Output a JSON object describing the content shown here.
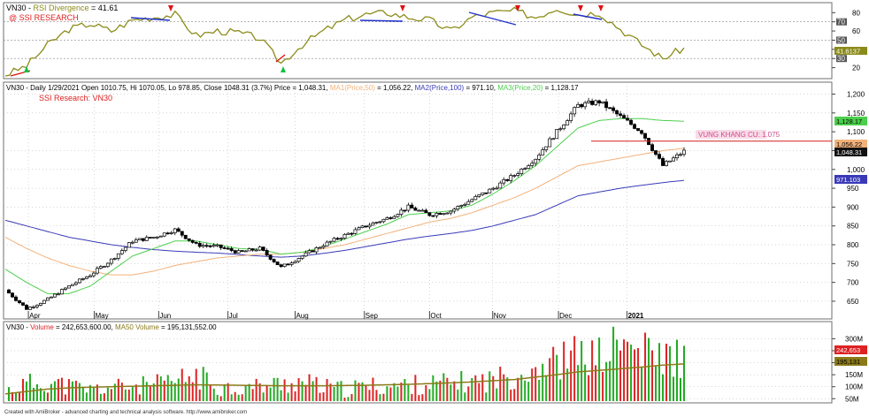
{
  "colors": {
    "background": "#ffffff",
    "rsi_line": "#8b8b1a",
    "divergence_line": "#2233cc",
    "arrow_down": "#e01010",
    "arrow_up": "#10c040",
    "candle": "#000000",
    "ma1": "#f2b27a",
    "ma2": "#3a3ab8",
    "ma3": "#4ccf4c",
    "resistance": "#d42020",
    "volume_up": "#22aa22",
    "volume_down": "#dd2222",
    "volume_ma": "#8b7a1a",
    "grid": "#b0b0b0",
    "text_red": "#e02020",
    "text_pink": "#d24a8c"
  },
  "rsi_panel": {
    "title_prefix": "VN30 - ",
    "title_name": "RSI Divergence",
    "title_value": " = 41.61",
    "watermark": "@ SSI RESEARCH",
    "tick_labels": [
      "80",
      "70",
      "60",
      "50",
      "40",
      "30",
      "20"
    ],
    "current_value_label": "41.6137"
  },
  "price_panel": {
    "info_prefix": "VN30 - Daily 1/29/2021 Open 1010.75, Hi 1070.05, Lo 978.85, Close 1048.31 (3.7%) Price = 1,048.31, ",
    "ma1_label": "MA1(Price,50)",
    "ma1_value": " = 1,056.22, ",
    "ma2_label": "MA2(Price,100)",
    "ma2_value": " = 971.10, ",
    "ma3_label": "MA3(Price,20)",
    "ma3_value": " = 1,128.17",
    "subtitle": "SSI Research: VN30",
    "resistance_label": "VUNG KHANG CU: 1.075",
    "tick_labels": [
      "1,200",
      "1,150",
      "1,100",
      "1,050",
      "1,000",
      "950",
      "900",
      "850",
      "800",
      "750",
      "700",
      "650"
    ],
    "badges": {
      "ma3": "1,128.17",
      "ma1": "1,056.22",
      "close": "1,048.31",
      "ma2": "971.103"
    },
    "month_labels": [
      "Apr",
      "May",
      "Jun",
      "Jul",
      "Aug",
      "Sep",
      "Oct",
      "Nov",
      "Dec",
      "2021"
    ]
  },
  "volume_panel": {
    "title_prefix": "VN30 - ",
    "title_volume": "Volume",
    "title_volume_value": " = 242,653,600.00, ",
    "title_ma": "MA50 Volume",
    "title_ma_value": " = 195,131,552.00",
    "tick_labels": [
      "300M",
      "250M",
      "200M",
      "150M",
      "100M",
      "50M"
    ],
    "badges": {
      "volume": "242,653",
      "ma": "195,131"
    }
  },
  "footer": "Created with AmiBroker - advanced charting and technical analysis software. http://www.amibroker.com",
  "chart_data": {
    "type": "candlestick",
    "x": [
      "2020-03-19",
      "2020-03-25",
      "2020-04-01",
      "2020-04-10",
      "2020-04-20",
      "2020-05-04",
      "2020-05-15",
      "2020-05-29",
      "2020-06-09",
      "2020-06-12",
      "2020-06-26",
      "2020-07-10",
      "2020-07-22",
      "2020-07-28",
      "2020-08-07",
      "2020-08-20",
      "2020-09-04",
      "2020-09-18",
      "2020-10-02",
      "2020-10-16",
      "2020-10-30",
      "2020-11-05",
      "2020-11-20",
      "2020-12-04",
      "2020-12-18",
      "2020-12-30",
      "2021-01-08",
      "2021-01-15",
      "2021-01-19",
      "2021-01-22",
      "2021-01-26",
      "2021-01-28",
      "2021-01-29"
    ],
    "price_close": [
      680,
      630,
      655,
      690,
      720,
      760,
      810,
      820,
      840,
      800,
      795,
      780,
      790,
      740,
      770,
      800,
      825,
      850,
      870,
      900,
      880,
      890,
      920,
      950,
      985,
      1030,
      1100,
      1170,
      1180,
      1140,
      1100,
      1010,
      1048
    ],
    "series": [
      {
        "name": "MA1(Price,50)",
        "values": [
          820,
          790,
          765,
          745,
          730,
          720,
          720,
          730,
          745,
          755,
          765,
          770,
          775,
          775,
          780,
          790,
          800,
          815,
          830,
          845,
          860,
          870,
          885,
          905,
          925,
          950,
          980,
          1010,
          1020,
          1030,
          1040,
          1050,
          1056
        ]
      },
      {
        "name": "MA2(Price,100)",
        "values": [
          865,
          850,
          835,
          820,
          810,
          800,
          793,
          787,
          783,
          780,
          778,
          774,
          770,
          767,
          770,
          777,
          785,
          795,
          805,
          815,
          823,
          830,
          838,
          850,
          865,
          880,
          905,
          930,
          940,
          950,
          958,
          965,
          971
        ]
      },
      {
        "name": "MA3(Price,20)",
        "values": [
          735,
          700,
          670,
          670,
          690,
          730,
          770,
          790,
          810,
          810,
          800,
          790,
          788,
          775,
          780,
          795,
          815,
          835,
          855,
          880,
          885,
          890,
          905,
          935,
          970,
          1010,
          1060,
          1110,
          1130,
          1135,
          1135,
          1130,
          1128
        ]
      }
    ],
    "resistance": 1075,
    "ylim": [
      610,
      1220
    ],
    "rsi": {
      "name": "RSI Divergence",
      "values": [
        12,
        22,
        45,
        62,
        68,
        60,
        72,
        75,
        78,
        55,
        60,
        58,
        52,
        25,
        45,
        60,
        72,
        78,
        80,
        75,
        72,
        60,
        75,
        80,
        82,
        75,
        85,
        78,
        80,
        62,
        45,
        30,
        41.61
      ],
      "ylim": [
        10,
        88
      ],
      "reference_lines": [
        70,
        50,
        30
      ]
    },
    "volume": {
      "name": "Volume",
      "values": [
        90,
        120,
        130,
        110,
        95,
        105,
        110,
        115,
        130,
        160,
        110,
        100,
        110,
        120,
        130,
        105,
        95,
        110,
        110,
        115,
        120,
        125,
        130,
        140,
        160,
        200,
        220,
        250,
        240,
        300,
        260,
        240,
        242.65
      ],
      "ma50": [
        70,
        80,
        90,
        95,
        98,
        100,
        102,
        104,
        106,
        108,
        107,
        106,
        105,
        104,
        104,
        104,
        105,
        106,
        108,
        110,
        113,
        116,
        120,
        125,
        130,
        140,
        150,
        162,
        168,
        175,
        182,
        190,
        195.13
      ],
      "unit": "M",
      "ylim": [
        40,
        320
      ]
    },
    "grid": true
  }
}
